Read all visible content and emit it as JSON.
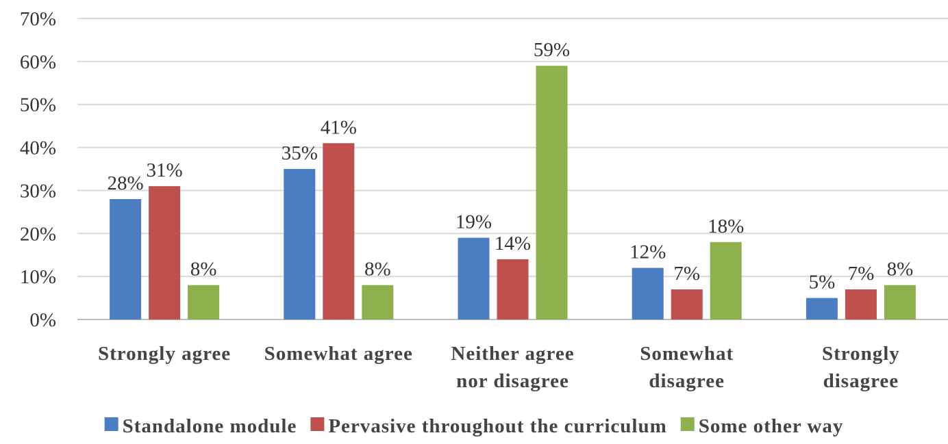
{
  "chart_data": {
    "type": "bar",
    "categories": [
      [
        "Strongly agree"
      ],
      [
        "Somewhat agree"
      ],
      [
        "Neither agree",
        "nor disagree"
      ],
      [
        "Somewhat",
        "disagree"
      ],
      [
        "Strongly",
        "disagree"
      ]
    ],
    "series": [
      {
        "name": "Standalone module",
        "color": "#4a7dc2",
        "values": [
          28,
          35,
          19,
          12,
          5
        ],
        "labels": [
          "28%",
          "35%",
          "19%",
          "12%",
          "5%"
        ]
      },
      {
        "name": "Pervasive throughout the curriculum",
        "color": "#c0504d",
        "values": [
          31,
          41,
          14,
          7,
          7
        ],
        "labels": [
          "31%",
          "41%",
          "14%",
          "7%",
          "7%"
        ]
      },
      {
        "name": "Some other way",
        "color": "#8db14c",
        "values": [
          8,
          8,
          59,
          18,
          8
        ],
        "labels": [
          "8%",
          "8%",
          "59%",
          "18%",
          "8%"
        ]
      }
    ],
    "yticks": [
      "0%",
      "10%",
      "20%",
      "30%",
      "40%",
      "50%",
      "60%",
      "70%"
    ],
    "ylim": [
      0,
      70
    ],
    "grid": true,
    "legend": "bottom"
  }
}
